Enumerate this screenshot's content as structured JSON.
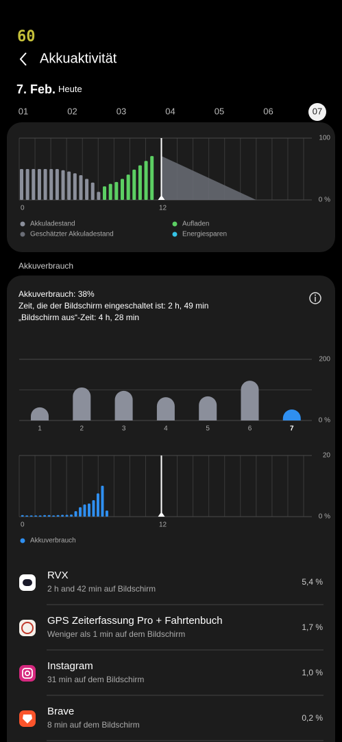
{
  "status": "60",
  "header": {
    "title": "Akkuaktivität"
  },
  "date": {
    "day": "7. Feb.",
    "label": "Heute"
  },
  "day_tabs": [
    "01",
    "02",
    "03",
    "04",
    "05",
    "06",
    "07"
  ],
  "selected_tab": 6,
  "battery_chart": {
    "type": "bar",
    "xlim": [
      0,
      24
    ],
    "xticks": [
      0,
      12
    ],
    "ylim": [
      0,
      100
    ],
    "yticks": [
      {
        "value": 0,
        "label": "0 %"
      },
      100
    ],
    "now": 12,
    "series": [
      {
        "name": "Akkuladestand",
        "color": "#8b8f9b",
        "kind": "bar",
        "x": [
          0,
          0.5,
          1,
          1.5,
          2,
          2.5,
          3,
          3.5,
          4,
          4.5,
          5,
          5.5,
          6,
          6.5
        ],
        "values": [
          50,
          50,
          50,
          50,
          50,
          50,
          50,
          48,
          46,
          43,
          40,
          34,
          28,
          13
        ]
      },
      {
        "name": "Aufladen",
        "color": "#5ccf63",
        "kind": "bar",
        "x": [
          7,
          7.5,
          8,
          8.5,
          9,
          9.5,
          10,
          10.5,
          11
        ],
        "values": [
          22,
          26,
          29,
          34,
          41,
          49,
          56,
          63,
          71
        ]
      },
      {
        "name": "Geschätzter Akkuladestand",
        "color": "#6a6d76",
        "kind": "area",
        "x": [
          12,
          20
        ],
        "values": [
          71,
          0
        ]
      },
      {
        "name": "Energiesparen",
        "color": "#35c3e6",
        "kind": "bar",
        "x": [],
        "values": []
      }
    ]
  },
  "usage_section": "Akkuverbrauch",
  "summary": [
    "Akkuverbrauch: 38%",
    "Zeit, die der Bildschirm eingeschaltet ist: 2 h, 49 min",
    "„Bildschirm aus“-Zeit: 4 h, 28 min"
  ],
  "weekly_chart": {
    "type": "bar",
    "categories": [
      "1",
      "2",
      "3",
      "4",
      "5",
      "6",
      "7"
    ],
    "values": [
      43,
      108,
      97,
      76,
      79,
      130,
      36
    ],
    "colors": [
      "#8b8f9b",
      "#8b8f9b",
      "#8b8f9b",
      "#8b8f9b",
      "#8b8f9b",
      "#8b8f9b",
      "#2f8ff0"
    ],
    "ylim": [
      0,
      200
    ],
    "yticks": [
      {
        "value": 0,
        "label": "0 %"
      },
      200
    ]
  },
  "hourly_chart": {
    "type": "bar",
    "xlim": [
      0,
      24
    ],
    "xticks": [
      0,
      12
    ],
    "ylim": [
      0,
      20
    ],
    "yticks": [
      {
        "value": 0,
        "label": "0 %"
      },
      20
    ],
    "now": 12,
    "series": [
      {
        "name": "Akkuverbrauch",
        "color": "#2f8ff0",
        "kind": "bar",
        "x": [
          0.1,
          0.475,
          0.85,
          1.225,
          1.6,
          1.975,
          2.35,
          2.725,
          3.1,
          3.475,
          3.85,
          4.225,
          4.6,
          4.975,
          5.35,
          5.725,
          6.1,
          6.475,
          6.85,
          7.225
        ],
        "values": [
          0.5,
          0.4,
          0.4,
          0.4,
          0.4,
          0.5,
          0.5,
          0.4,
          0.5,
          0.6,
          0.6,
          0.7,
          1.8,
          3.1,
          4.0,
          4.3,
          5.4,
          7.6,
          10.1,
          2.0
        ]
      }
    ]
  },
  "apps": [
    {
      "name": "RVX",
      "detail": "2 h and 42 min auf Bildschirm",
      "percent": "5,4 %"
    },
    {
      "name": "GPS Zeiterfassung Pro + Fahrtenbuch",
      "detail": "Weniger als 1 min auf dem Bildschirm",
      "percent": "1,7 %"
    },
    {
      "name": "Instagram",
      "detail": "31 min auf dem Bildschirm",
      "percent": "1,0 %"
    },
    {
      "name": "Brave",
      "detail": "8 min auf dem Bildschirm",
      "percent": "0,2 %"
    }
  ]
}
